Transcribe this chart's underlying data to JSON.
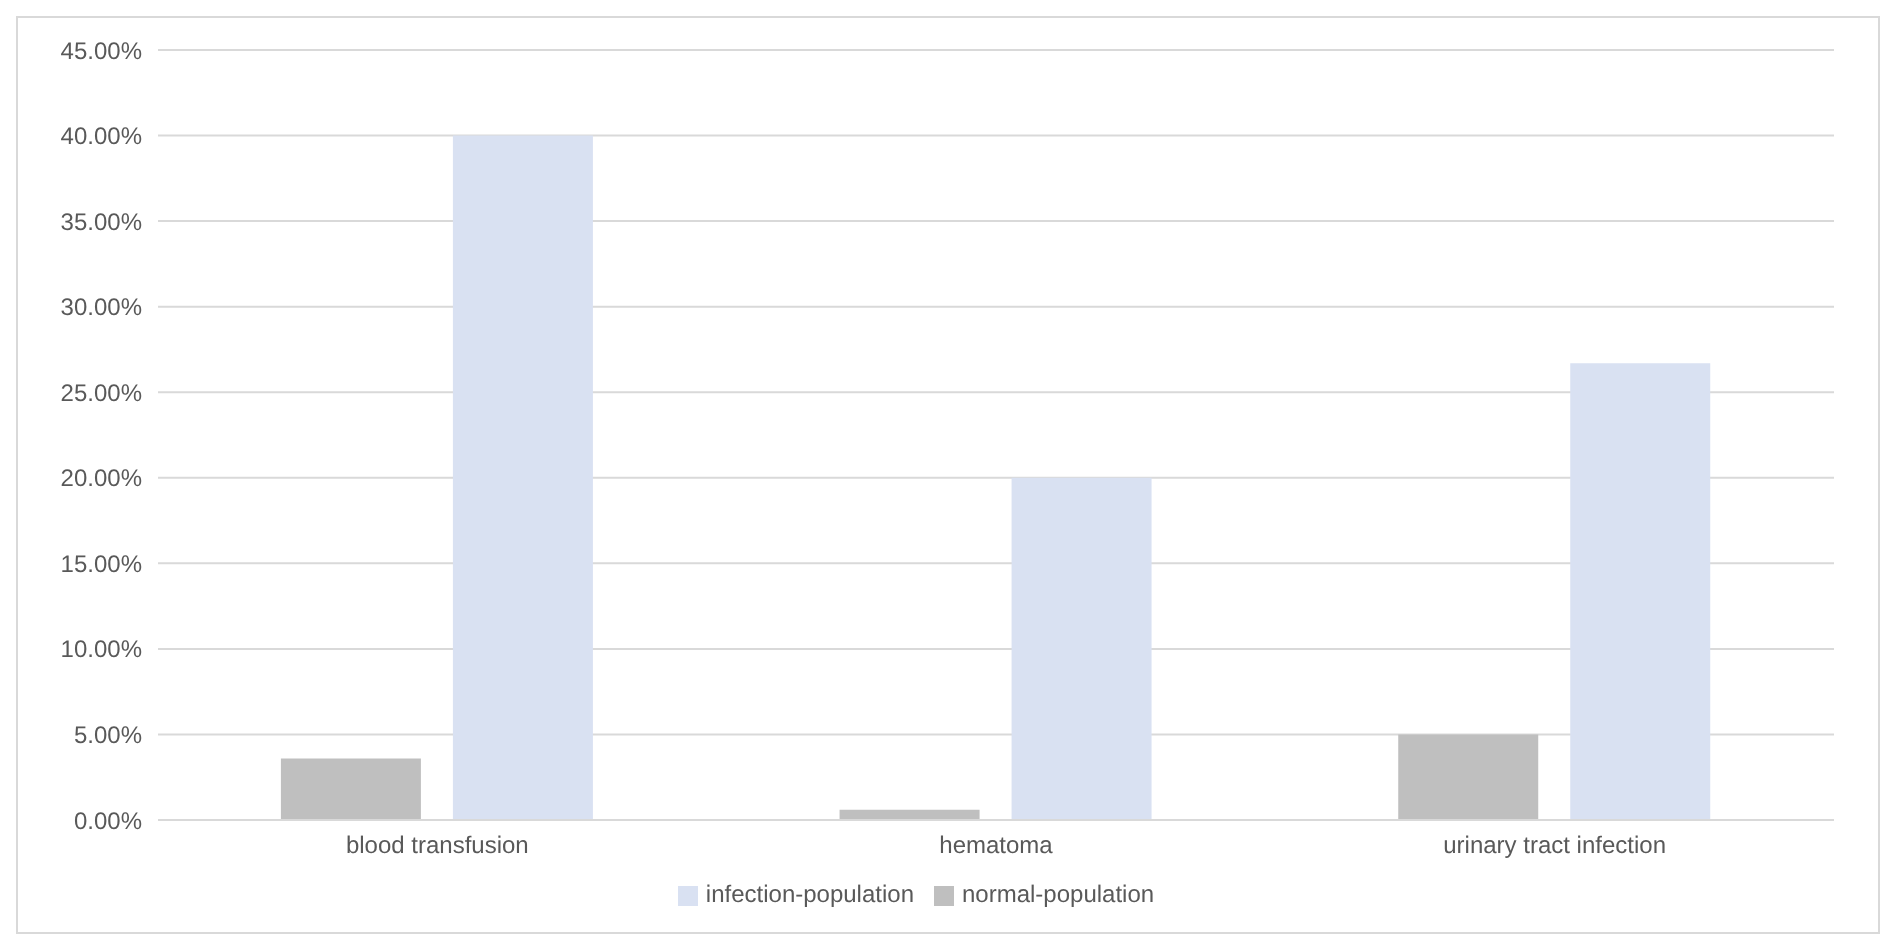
{
  "chart_data": {
    "type": "bar",
    "categories": [
      "blood transfusion",
      "hematoma",
      "urinary tract infection"
    ],
    "series": [
      {
        "name": "normal-population",
        "color": "#bfbfbf",
        "values": [
          3.6,
          0.6,
          5.0
        ]
      },
      {
        "name": "infection-population",
        "color": "#d9e1f2",
        "values": [
          40.0,
          20.0,
          26.7
        ]
      }
    ],
    "ylim": [
      0,
      45
    ],
    "yticks": [
      {
        "value": 0,
        "label": "0.00%"
      },
      {
        "value": 5,
        "label": "5.00%"
      },
      {
        "value": 10,
        "label": "10.00%"
      },
      {
        "value": 15,
        "label": "15.00%"
      },
      {
        "value": 20,
        "label": "20.00%"
      },
      {
        "value": 25,
        "label": "25.00%"
      },
      {
        "value": 30,
        "label": "30.00%"
      },
      {
        "value": 35,
        "label": "35.00%"
      },
      {
        "value": 40,
        "label": "40.00%"
      },
      {
        "value": 45,
        "label": "45.00%"
      }
    ],
    "grid": "y",
    "legend": "bottom"
  }
}
